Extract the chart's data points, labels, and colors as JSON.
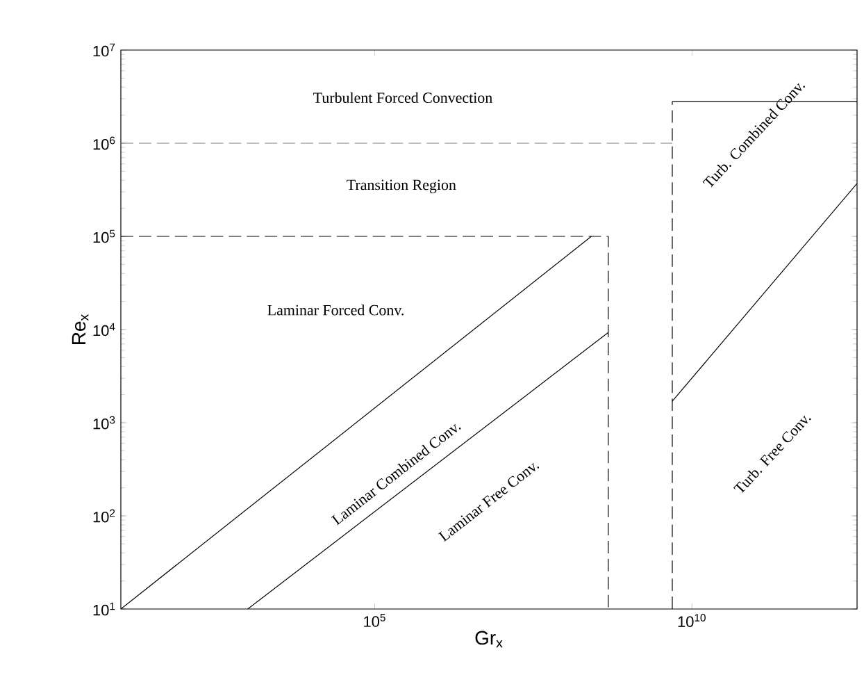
{
  "chart_data": {
    "type": "line",
    "xlabel": "Gr$_{x}$",
    "ylabel": "Re$_{x}$",
    "log": "xy",
    "xlim": [
      10,
      4000000000000.0
    ],
    "ylim": [
      10,
      10000000.0
    ],
    "xticks": [
      {
        "value": 100000.0,
        "label": "10$^{5}$"
      },
      {
        "value": 10000000000.0,
        "label": "10$^{10}$"
      }
    ],
    "yticks": [
      {
        "value": 10,
        "label": "10$^{1}$"
      },
      {
        "value": 100,
        "label": "10$^{2}$"
      },
      {
        "value": 1000,
        "label": "10$^{3}$"
      },
      {
        "value": 10000,
        "label": "10$^{4}$"
      },
      {
        "value": 100000,
        "label": "10$^{5}$"
      },
      {
        "value": 1000000,
        "label": "10$^{6}$"
      },
      {
        "value": 10000000,
        "label": "10$^{7}$"
      }
    ],
    "grid": false,
    "marker": "none",
    "series": [
      {
        "color": "#000000",
        "line_style": "solid",
        "x": [
          10,
          260000000.0
        ],
        "values": [
          10,
          100000
        ]
      },
      {
        "color": "#000000",
        "line_style": "solid",
        "x": [
          1000,
          480000000.0
        ],
        "values": [
          10,
          9300
        ]
      },
      {
        "color": "#000000",
        "line_style": "dashed",
        "x": [
          10,
          480000000.0,
          480000000.0
        ],
        "values": [
          100000,
          100000,
          10
        ]
      },
      {
        "color": "#808080",
        "line_style": "dashed",
        "x": [
          10,
          4900000000.0
        ],
        "values": [
          1000000,
          1000000
        ]
      },
      {
        "color": "#000000",
        "line_style": "dashed",
        "x": [
          4900000000.0,
          4900000000.0
        ],
        "values": [
          10,
          2800000
        ]
      },
      {
        "color": "#000000",
        "line_style": "solid",
        "x": [
          4900000000.0,
          4000000000000.0
        ],
        "values": [
          2800000,
          2800000
        ]
      },
      {
        "color": "#000000",
        "line_style": "solid",
        "x": [
          4900000000.0,
          4000000000000.0
        ],
        "values": [
          1700,
          370000
        ]
      }
    ],
    "annotations": [
      "Turbulent Forced Convection",
      "Transition Region",
      "Laminar Forced Conv.",
      "Laminar Combined Conv.",
      "Laminar Free Conv.",
      "Turb. Combined Conv.",
      "Turb. Free Conv."
    ]
  }
}
